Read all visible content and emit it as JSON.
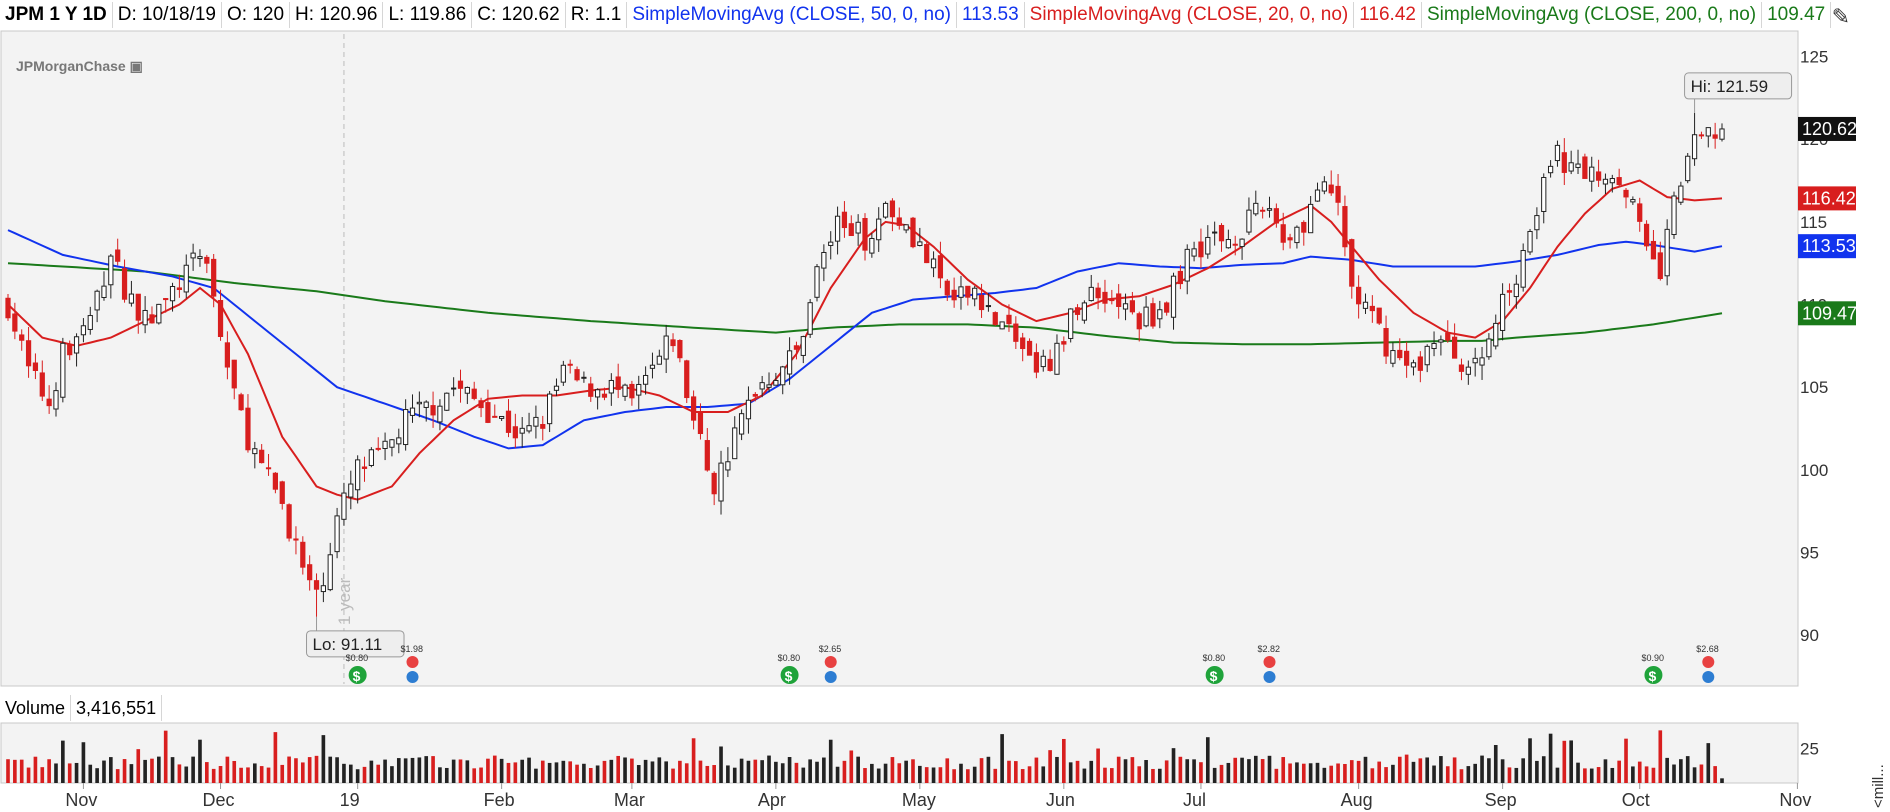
{
  "header": {
    "symbol": "JPM 1 Y 1D",
    "date": "D: 10/18/19",
    "open": "O: 120",
    "high": "H: 120.96",
    "low": "L: 119.86",
    "close": "C: 120.62",
    "range": "R: 1.1",
    "ma50_label": "SimpleMovingAvg (CLOSE, 50, 0, no)",
    "ma50_value": "113.53",
    "ma20_label": "SimpleMovingAvg (CLOSE, 20, 0, no)",
    "ma20_value": "116.42",
    "ma200_label": "SimpleMovingAvg (CLOSE, 200, 0, no)",
    "ma200_value": "109.47"
  },
  "logo_text": "JPMorganChase",
  "volume_panel": {
    "label": "Volume",
    "value": "3,416,551",
    "axis_unit": "<mill..."
  },
  "colors": {
    "up": "#222222",
    "down": "#d81e1e",
    "ma50": "#1133ee",
    "ma20": "#d81e1e",
    "ma200": "#1a7a1a",
    "background": "#f3f3f3"
  },
  "chart_data": {
    "type": "candlestick",
    "price_axis": {
      "ticks": [
        125,
        120,
        115,
        110,
        105,
        100,
        95,
        90
      ],
      "ylim": [
        88.5,
        126
      ]
    },
    "volume_axis": {
      "ticks": [
        25
      ],
      "ylim": [
        0,
        40
      ]
    },
    "x_labels": [
      "Nov",
      "Dec",
      "19",
      "Feb",
      "Mar",
      "Apr",
      "May",
      "Jun",
      "Jul",
      "Aug",
      "Sep",
      "Oct",
      "Nov"
    ],
    "n_bars": 251,
    "month_start_index": [
      11,
      31,
      51,
      72,
      91,
      112,
      133,
      154,
      174,
      197,
      218,
      238,
      261
    ],
    "annotations": {
      "high": {
        "label": "Hi: 121.59",
        "value": 121.59,
        "index": 246
      },
      "low": {
        "label": "Lo: 91.11",
        "value": 91.11,
        "index": 45
      },
      "year_marker": "1 year",
      "year_marker_index": 49
    },
    "last_price_tags": [
      {
        "label": "120.62",
        "value": 120.62,
        "color": "#111111"
      },
      {
        "label": "116.42",
        "value": 116.42,
        "color": "#d81e1e"
      },
      {
        "label": "113.53",
        "value": 113.53,
        "color": "#1133ee"
      },
      {
        "label": "109.47",
        "value": 109.47,
        "color": "#1a7a1a"
      }
    ],
    "price_path": [
      [
        0,
        110
      ],
      [
        3,
        106
      ],
      [
        6,
        104
      ],
      [
        8,
        107
      ],
      [
        12,
        109
      ],
      [
        15,
        113
      ],
      [
        17,
        111
      ],
      [
        20,
        109
      ],
      [
        23,
        110
      ],
      [
        26,
        112
      ],
      [
        29,
        113
      ],
      [
        31,
        108
      ],
      [
        34,
        103
      ],
      [
        37,
        100
      ],
      [
        40,
        98
      ],
      [
        43,
        94
      ],
      [
        45,
        92
      ],
      [
        48,
        97
      ],
      [
        51,
        100
      ],
      [
        55,
        101
      ],
      [
        58,
        103
      ],
      [
        62,
        104
      ],
      [
        65,
        105
      ],
      [
        69,
        104
      ],
      [
        72,
        103
      ],
      [
        75,
        102
      ],
      [
        78,
        103
      ],
      [
        81,
        106
      ],
      [
        84,
        105
      ],
      [
        88,
        105
      ],
      [
        91,
        104
      ],
      [
        94,
        106
      ],
      [
        97,
        108
      ],
      [
        100,
        103
      ],
      [
        103,
        99
      ],
      [
        106,
        102
      ],
      [
        109,
        105
      ],
      [
        112,
        106
      ],
      [
        115,
        107
      ],
      [
        118,
        112
      ],
      [
        121,
        115
      ],
      [
        125,
        114
      ],
      [
        128,
        116
      ],
      [
        131,
        115
      ],
      [
        135,
        112
      ],
      [
        138,
        110
      ],
      [
        141,
        111
      ],
      [
        144,
        109
      ],
      [
        147,
        108
      ],
      [
        150,
        106
      ],
      [
        153,
        107
      ],
      [
        156,
        110
      ],
      [
        159,
        111
      ],
      [
        162,
        110
      ],
      [
        165,
        109
      ],
      [
        169,
        110
      ],
      [
        172,
        113
      ],
      [
        175,
        114
      ],
      [
        178,
        114
      ],
      [
        181,
        115
      ],
      [
        184,
        116
      ],
      [
        186,
        114
      ],
      [
        189,
        115
      ],
      [
        191,
        117
      ],
      [
        194,
        116
      ],
      [
        196,
        111
      ],
      [
        199,
        109
      ],
      [
        202,
        107
      ],
      [
        205,
        106
      ],
      [
        208,
        108
      ],
      [
        211,
        107
      ],
      [
        214,
        106
      ],
      [
        217,
        109
      ],
      [
        220,
        112
      ],
      [
        223,
        116
      ],
      [
        226,
        119
      ],
      [
        229,
        118
      ],
      [
        232,
        118
      ],
      [
        235,
        118
      ],
      [
        237,
        116
      ],
      [
        239,
        113
      ],
      [
        241,
        112
      ],
      [
        243,
        116
      ],
      [
        245,
        119
      ],
      [
        247,
        120
      ],
      [
        250,
        120.62
      ]
    ],
    "ma20_path": [
      [
        0,
        110
      ],
      [
        5,
        108
      ],
      [
        10,
        107.5
      ],
      [
        15,
        108
      ],
      [
        20,
        109
      ],
      [
        25,
        110
      ],
      [
        28,
        111
      ],
      [
        31,
        110
      ],
      [
        35,
        107
      ],
      [
        40,
        102
      ],
      [
        45,
        99
      ],
      [
        48,
        98.5
      ],
      [
        51,
        98.2
      ],
      [
        56,
        99
      ],
      [
        60,
        101
      ],
      [
        65,
        103
      ],
      [
        70,
        104.3
      ],
      [
        75,
        104.5
      ],
      [
        80,
        104.5
      ],
      [
        85,
        104.8
      ],
      [
        90,
        105
      ],
      [
        95,
        104.5
      ],
      [
        100,
        103.5
      ],
      [
        105,
        103.5
      ],
      [
        110,
        104.5
      ],
      [
        115,
        107
      ],
      [
        120,
        111
      ],
      [
        125,
        114
      ],
      [
        128,
        115
      ],
      [
        131,
        114.8
      ],
      [
        135,
        113.5
      ],
      [
        140,
        111.5
      ],
      [
        145,
        110
      ],
      [
        150,
        109
      ],
      [
        155,
        109.5
      ],
      [
        160,
        110.3
      ],
      [
        165,
        110.5
      ],
      [
        170,
        111.2
      ],
      [
        175,
        112.2
      ],
      [
        180,
        113.5
      ],
      [
        185,
        115
      ],
      [
        190,
        116
      ],
      [
        193,
        115
      ],
      [
        196,
        113.5
      ],
      [
        200,
        111.5
      ],
      [
        205,
        109.5
      ],
      [
        210,
        108.3
      ],
      [
        214,
        108
      ],
      [
        218,
        109
      ],
      [
        222,
        111
      ],
      [
        226,
        113.5
      ],
      [
        230,
        115.5
      ],
      [
        234,
        117
      ],
      [
        238,
        117.5
      ],
      [
        242,
        116.5
      ],
      [
        246,
        116.3
      ],
      [
        250,
        116.42
      ]
    ],
    "ma50_path": [
      [
        0,
        114.5
      ],
      [
        8,
        113
      ],
      [
        16,
        112.3
      ],
      [
        24,
        111.7
      ],
      [
        30,
        111
      ],
      [
        36,
        109
      ],
      [
        42,
        107
      ],
      [
        48,
        105
      ],
      [
        55,
        104
      ],
      [
        62,
        103
      ],
      [
        68,
        102
      ],
      [
        73,
        101.3
      ],
      [
        78,
        101.5
      ],
      [
        84,
        103
      ],
      [
        90,
        103.5
      ],
      [
        96,
        103.8
      ],
      [
        102,
        103.8
      ],
      [
        108,
        104
      ],
      [
        114,
        105.5
      ],
      [
        120,
        107.5
      ],
      [
        126,
        109.5
      ],
      [
        132,
        110.3
      ],
      [
        138,
        110.5
      ],
      [
        144,
        110.7
      ],
      [
        150,
        111
      ],
      [
        156,
        112
      ],
      [
        162,
        112.5
      ],
      [
        168,
        112.3
      ],
      [
        174,
        112.2
      ],
      [
        180,
        112.4
      ],
      [
        186,
        112.5
      ],
      [
        190,
        112.9
      ],
      [
        196,
        112.7
      ],
      [
        202,
        112.3
      ],
      [
        208,
        112.3
      ],
      [
        214,
        112.3
      ],
      [
        220,
        112.6
      ],
      [
        226,
        113
      ],
      [
        232,
        113.6
      ],
      [
        236,
        113.8
      ],
      [
        240,
        113.6
      ],
      [
        246,
        113.2
      ],
      [
        250,
        113.53
      ]
    ],
    "ma200_path": [
      [
        0,
        112.5
      ],
      [
        20,
        112
      ],
      [
        33,
        111.3
      ],
      [
        45,
        110.8
      ],
      [
        55,
        110.2
      ],
      [
        70,
        109.5
      ],
      [
        85,
        109
      ],
      [
        100,
        108.6
      ],
      [
        112,
        108.3
      ],
      [
        120,
        108.6
      ],
      [
        130,
        108.8
      ],
      [
        140,
        108.8
      ],
      [
        150,
        108.6
      ],
      [
        160,
        108.1
      ],
      [
        170,
        107.7
      ],
      [
        180,
        107.6
      ],
      [
        190,
        107.6
      ],
      [
        200,
        107.7
      ],
      [
        210,
        107.8
      ],
      [
        215,
        107.8
      ],
      [
        220,
        108
      ],
      [
        230,
        108.3
      ],
      [
        240,
        108.8
      ],
      [
        250,
        109.47
      ]
    ],
    "dividends": [
      {
        "label": "$0.80",
        "index": 51
      },
      {
        "label": "$0.80",
        "index": 114
      },
      {
        "label": "$0.80",
        "index": 176
      },
      {
        "label": "$0.90",
        "index": 240
      }
    ],
    "earnings": [
      {
        "label": "$1.98",
        "index": 59
      },
      {
        "label": "$2.65",
        "index": 120
      },
      {
        "label": "$2.82",
        "index": 184
      },
      {
        "label": "$2.68",
        "index": 248
      }
    ]
  }
}
